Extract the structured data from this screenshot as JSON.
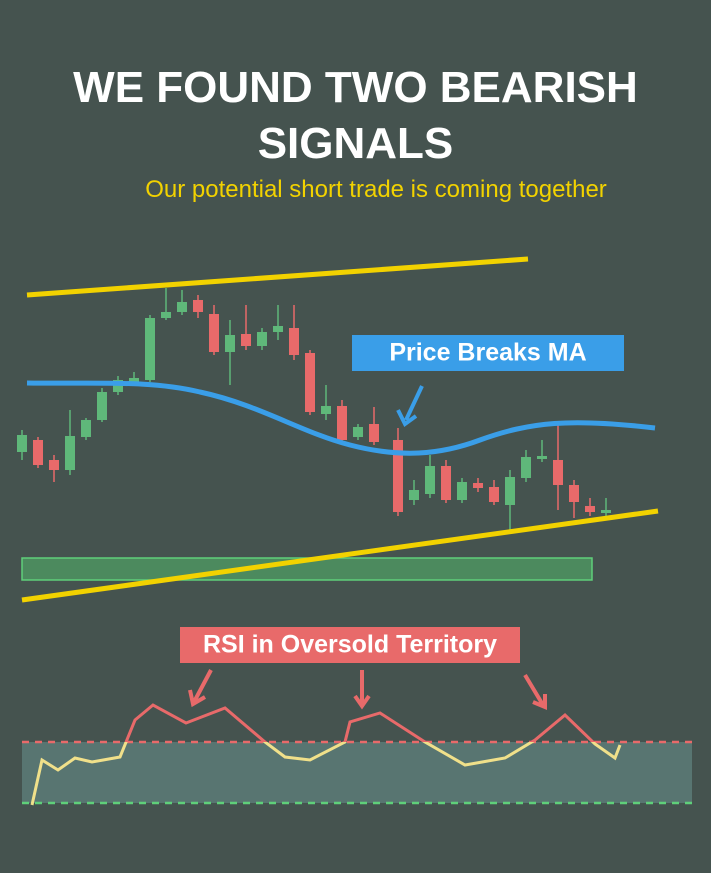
{
  "header": {
    "title": "WE FOUND TWO BEARISH SIGNALS",
    "subtitle": "Our potential short trade is coming together"
  },
  "annotations": {
    "price": "Price Breaks MA",
    "rsi": "RSI in Oversold Territory"
  }
}
